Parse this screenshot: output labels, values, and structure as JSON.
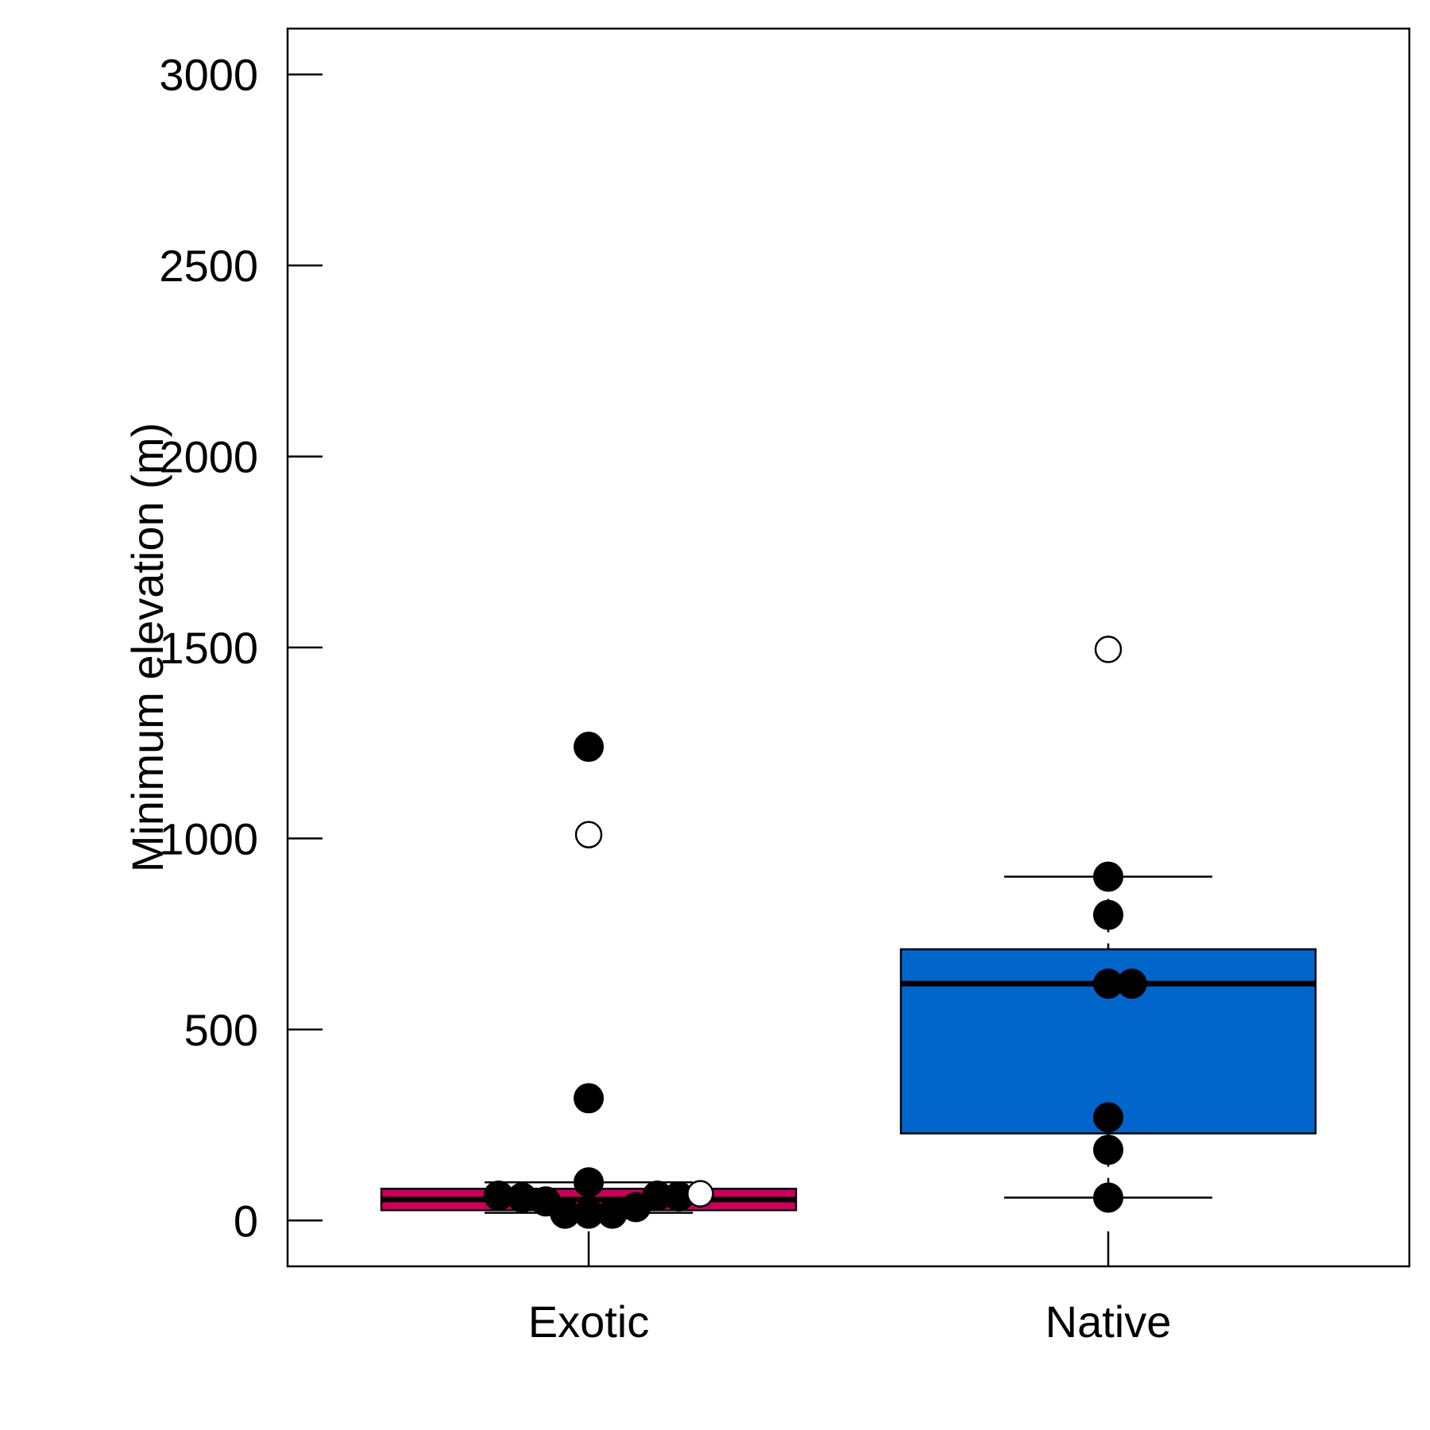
{
  "chart_data": {
    "type": "box",
    "ylabel": "Minimum elevation (m)",
    "xlabel": "",
    "ylim": [
      -120,
      3120
    ],
    "yticks": [
      0,
      500,
      1000,
      1500,
      2000,
      2500,
      3000
    ],
    "grid": false,
    "categories": [
      "Exotic",
      "Native"
    ],
    "groups": [
      {
        "name": "Exotic",
        "color": "#c8005a",
        "box": {
          "q1": 27,
          "median": 55,
          "q3": 83,
          "whisker_low": 20,
          "whisker_high": 100
        },
        "points_filled": [
          {
            "x": -0.21,
            "y": 65
          },
          {
            "x": -0.155,
            "y": 60
          },
          {
            "x": -0.1,
            "y": 50
          },
          {
            "x": -0.055,
            "y": 18
          },
          {
            "x": 0.0,
            "y": 18
          },
          {
            "x": 0.055,
            "y": 18
          },
          {
            "x": 0.11,
            "y": 35
          },
          {
            "x": 0.16,
            "y": 65
          },
          {
            "x": 0.21,
            "y": 63
          },
          {
            "x": 0.0,
            "y": 100
          },
          {
            "x": 0.0,
            "y": 320
          },
          {
            "x": 0.0,
            "y": 1240
          }
        ],
        "points_outlier": [
          {
            "x": 0.26,
            "y": 70
          },
          {
            "x": 0.0,
            "y": 1010
          }
        ]
      },
      {
        "name": "Native",
        "color": "#0066cc",
        "box": {
          "q1": 228,
          "median": 620,
          "q3": 710,
          "whisker_low": 60,
          "whisker_high": 900
        },
        "points_filled": [
          {
            "x": 0.0,
            "y": 60
          },
          {
            "x": 0.0,
            "y": 185
          },
          {
            "x": 0.0,
            "y": 270
          },
          {
            "x": 0.0,
            "y": 620
          },
          {
            "x": 0.055,
            "y": 620
          },
          {
            "x": 0.0,
            "y": 800
          },
          {
            "x": 0.0,
            "y": 900
          }
        ],
        "points_outlier": [
          {
            "x": 0.0,
            "y": 1495
          }
        ]
      }
    ]
  }
}
